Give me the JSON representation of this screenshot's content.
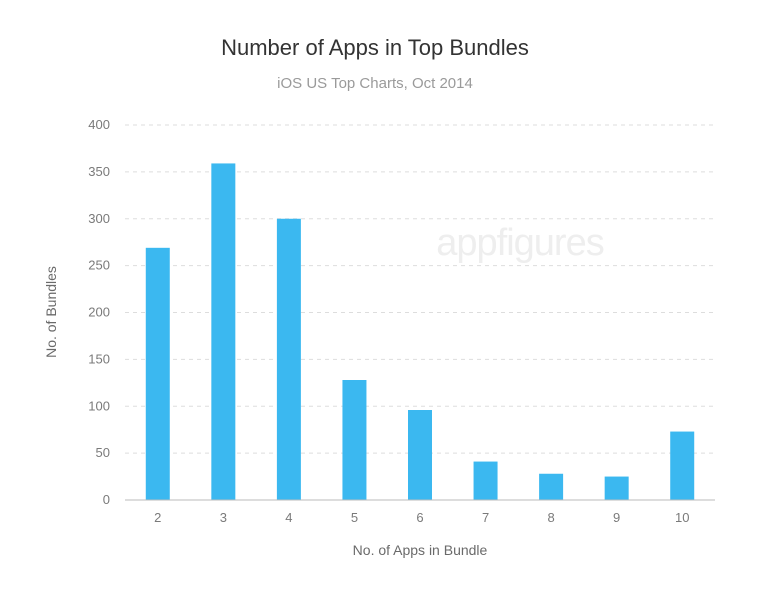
{
  "watermark": "appfigures",
  "chart_data": {
    "type": "bar",
    "title": "Number of Apps in Top Bundles",
    "subtitle": "iOS US Top Charts, Oct 2014",
    "xlabel": "No. of Apps in Bundle",
    "ylabel": "No. of Bundles",
    "categories": [
      "2",
      "3",
      "4",
      "5",
      "6",
      "7",
      "8",
      "9",
      "10"
    ],
    "values": [
      269,
      359,
      300,
      128,
      96,
      41,
      28,
      25,
      73
    ],
    "ylim": [
      0,
      400
    ],
    "yticks": [
      "0",
      "50",
      "100",
      "150",
      "200",
      "250",
      "300",
      "350",
      "400"
    ],
    "grid": true,
    "bar_color": "#3bb8f0"
  }
}
